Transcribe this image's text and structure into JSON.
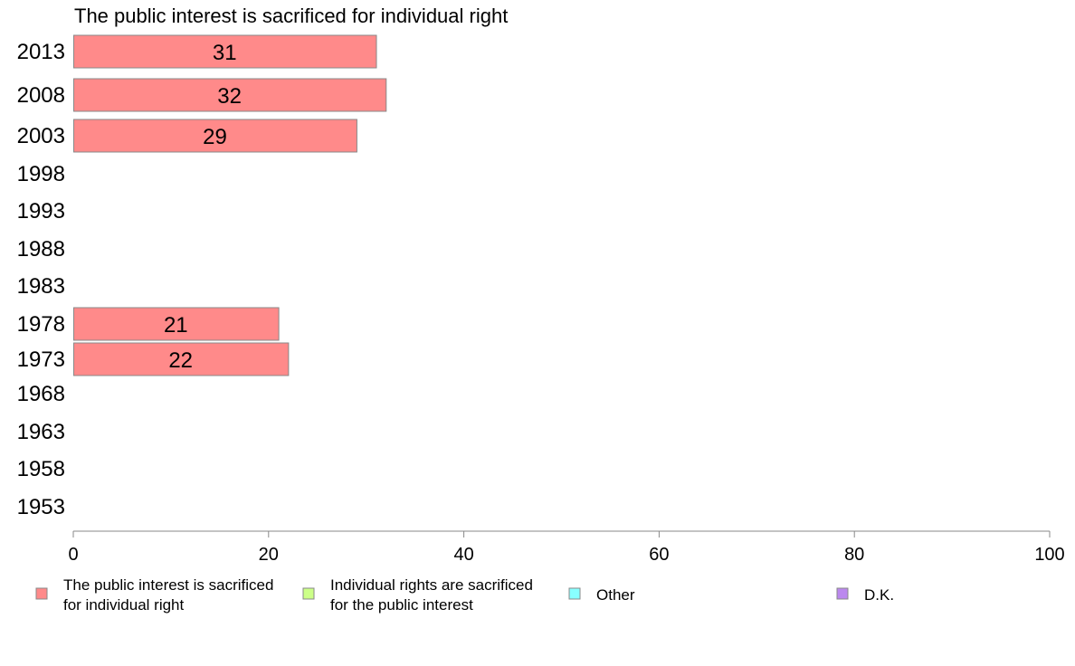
{
  "chart_data": {
    "type": "bar",
    "orientation": "horizontal",
    "title": "The public interest is sacrificed for individual right",
    "categories": [
      "2013",
      "2008",
      "2003",
      "1998",
      "1993",
      "1988",
      "1983",
      "1978",
      "1973",
      "1968",
      "1963",
      "1958",
      "1953"
    ],
    "series": [
      {
        "name": "The public interest is sacrificed for individual right",
        "color": "#ff8a8a",
        "values": [
          31,
          32,
          29,
          null,
          null,
          null,
          null,
          21,
          22,
          null,
          null,
          null,
          null
        ]
      }
    ],
    "xlim": [
      0,
      100
    ],
    "xticks": [
      "0",
      "20",
      "40",
      "60",
      "80",
      "100"
    ],
    "data_labels": [
      "31",
      "32",
      "29",
      "",
      "",
      "",
      "",
      "21",
      "22",
      "",
      "",
      "",
      ""
    ],
    "legend": {
      "placement": "bottom",
      "items": [
        {
          "lines": [
            "The public interest is sacrificed",
            "for individual right"
          ],
          "color": "#ff8a8a"
        },
        {
          "lines": [
            "Individual rights are sacrificed",
            "for the public interest"
          ],
          "color": "#ccff88"
        },
        {
          "lines": [
            "Other"
          ],
          "color": "#88ffff"
        },
        {
          "lines": [
            "D.K."
          ],
          "color": "#bb88ee"
        }
      ]
    }
  }
}
